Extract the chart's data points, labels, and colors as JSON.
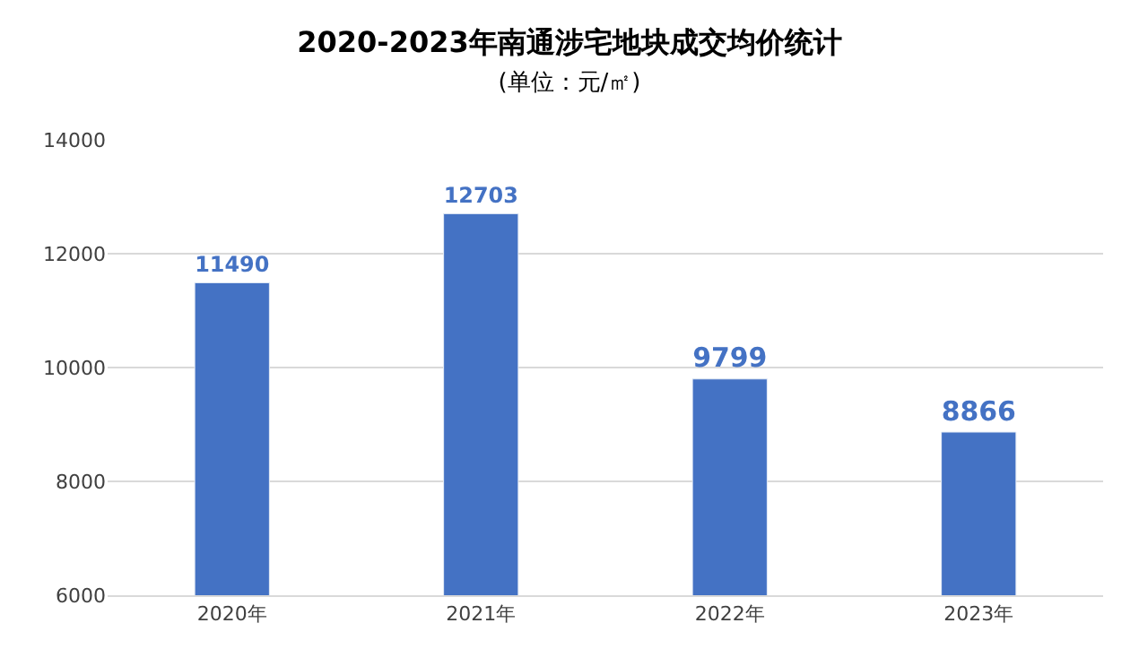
{
  "chart_data": {
    "type": "bar",
    "title": "2020-2023年南通涉宅地块成交均价统计",
    "subtitle": "(单位：元/㎡)",
    "categories": [
      "2020年",
      "2021年",
      "2022年",
      "2023年"
    ],
    "values": [
      11490,
      12703,
      9799,
      8866
    ],
    "color": "#4472c4",
    "ylim": [
      6000,
      14000
    ],
    "yticks": [
      6000,
      8000,
      10000,
      12000,
      14000
    ],
    "grid": "y",
    "data_labels": true,
    "legend": false
  }
}
